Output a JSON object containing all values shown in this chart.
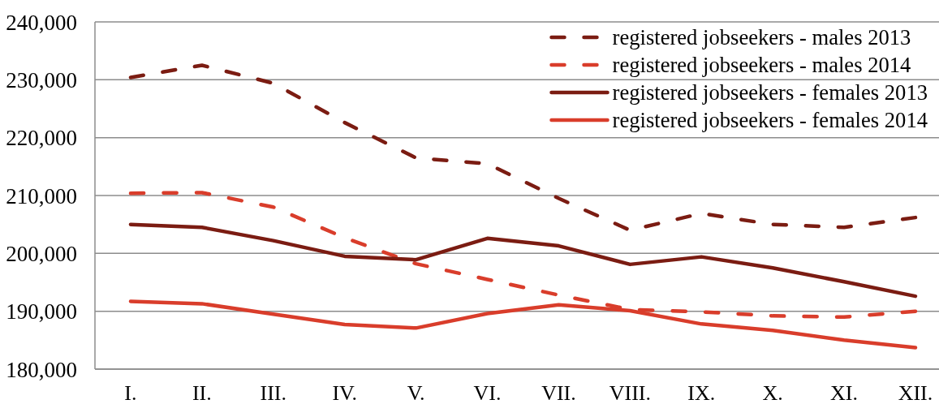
{
  "chart_data": {
    "type": "line",
    "categories": [
      "I.",
      "II.",
      "III.",
      "IV.",
      "V.",
      "VI.",
      "VII.",
      "VIII.",
      "IX.",
      "X.",
      "XI.",
      "XII."
    ],
    "series": [
      {
        "name": "registered jobseekers - males 2013",
        "color": "#7b1c12",
        "line_style": "dashed",
        "values": [
          230400,
          232500,
          229400,
          222600,
          216500,
          215500,
          209500,
          204000,
          206900,
          205000,
          204500,
          206200
        ]
      },
      {
        "name": "registered jobseekers - males 2014",
        "color": "#d93d2b",
        "line_style": "dashed",
        "values": [
          210400,
          210500,
          208000,
          202700,
          198200,
          195500,
          192800,
          190300,
          189900,
          189200,
          189000,
          190000
        ]
      },
      {
        "name": "registered jobseekers - females 2013",
        "color": "#7b1c12",
        "line_style": "solid",
        "values": [
          205000,
          204500,
          202200,
          199500,
          198900,
          202600,
          201300,
          198100,
          199400,
          197500,
          195100,
          192600
        ]
      },
      {
        "name": "registered jobseekers - females 2014",
        "color": "#d93d2b",
        "line_style": "solid",
        "values": [
          191700,
          191300,
          189500,
          187700,
          187100,
          189600,
          191100,
          190100,
          187800,
          186700,
          185000,
          183700
        ]
      }
    ],
    "ylim": [
      180000,
      240000
    ],
    "yticks": [
      {
        "value": 180000,
        "label": "180,000"
      },
      {
        "value": 190000,
        "label": "190,000"
      },
      {
        "value": 200000,
        "label": "200,000"
      },
      {
        "value": 210000,
        "label": "210,000"
      },
      {
        "value": 220000,
        "label": "220,000"
      },
      {
        "value": 230000,
        "label": "230,000"
      },
      {
        "value": 240000,
        "label": "240,000"
      }
    ],
    "grid": "y",
    "legend": "top right",
    "marker": "none"
  }
}
